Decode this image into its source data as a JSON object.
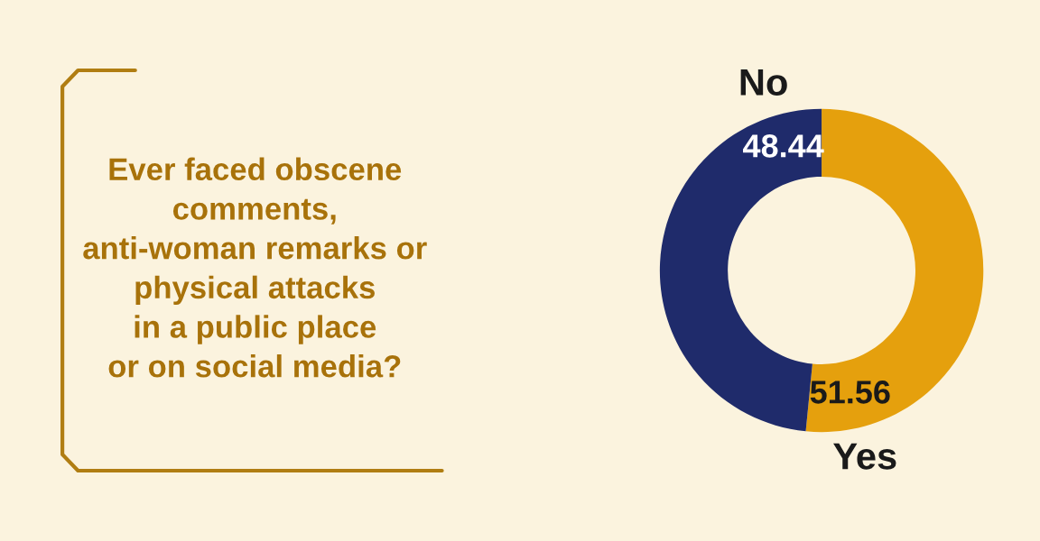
{
  "chart_data": {
    "type": "donut",
    "title": "Ever faced obscene\ncomments,\nanti-woman remarks or\nphysical attacks\nin a public place\nor on social media?",
    "categories": [
      "Yes",
      "No"
    ],
    "values": [
      51.56,
      48.44
    ],
    "colors": [
      "#e5a00d",
      "#1f2b6b"
    ],
    "data_labels": true,
    "legend": false
  }
}
